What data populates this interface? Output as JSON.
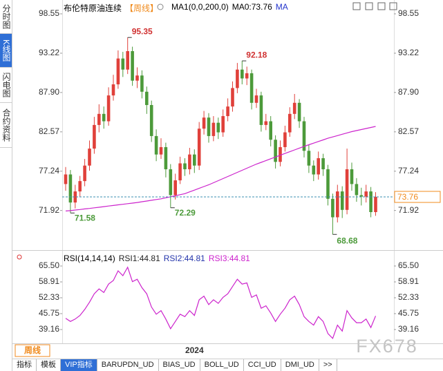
{
  "sidebar": {
    "tabs": [
      "分时图",
      "K线图",
      "闪电图",
      "合约资料"
    ]
  },
  "chart_data": [
    {
      "type": "candlestick",
      "title": "布伦特原油连续",
      "subtitle": "【周线】",
      "indicator_label": "MA1(0,0,200,0)",
      "indicator_value": "MA0:73.76",
      "indicator_name": "MA",
      "categories": [
        null,
        null,
        null,
        null,
        null,
        null,
        null,
        null,
        null,
        null,
        null,
        null,
        null,
        null,
        null,
        null,
        null,
        null,
        null,
        null,
        null,
        null,
        null,
        null,
        null,
        null,
        null,
        "2024",
        null,
        null,
        null,
        null,
        null,
        null,
        null,
        null,
        null,
        null,
        null,
        null,
        null,
        null,
        null,
        null,
        null,
        null,
        null,
        null,
        null,
        null,
        null,
        null,
        null,
        null,
        null,
        null,
        null,
        null,
        null,
        null,
        null,
        null,
        null,
        null,
        null,
        null
      ],
      "open": [
        75.5,
        76.8,
        73.0,
        74.5,
        75.9,
        78.0,
        80.3,
        83.5,
        85.0,
        84.0,
        87.5,
        89.0,
        92.5,
        91.0,
        93.5,
        89.5,
        90.2,
        88.0,
        86.2,
        82.0,
        79.5,
        80.5,
        77.5,
        74.0,
        76.0,
        78.3,
        77.5,
        79.5,
        78.0,
        83.0,
        84.5,
        82.0,
        83.8,
        82.5,
        84.7,
        86.0,
        88.5,
        91.0,
        89.8,
        90.5,
        86.5,
        87.5,
        83.5,
        84.0,
        81.5,
        78.5,
        80.5,
        82.5,
        85.0,
        86.5,
        84.0,
        80.0,
        78.0,
        76.8,
        79.0,
        77.5,
        73.5,
        71.0,
        74.5,
        72.0,
        77.5,
        75.5,
        74.0,
        73.8,
        74.5,
        71.7
      ],
      "high": [
        77.8,
        77.4,
        75.4,
        76.6,
        78.9,
        81.4,
        84.6,
        86.3,
        86.0,
        88.6,
        90.3,
        93.6,
        93.4,
        95.35,
        94.1,
        91.3,
        90.9,
        88.7,
        86.8,
        82.9,
        81.7,
        81.1,
        78.2,
        76.9,
        79.2,
        79.0,
        80.4,
        80.2,
        83.9,
        85.4,
        85.1,
        84.7,
        84.5,
        85.6,
        87.1,
        89.4,
        91.9,
        92.18,
        91.4,
        91.0,
        88.4,
        88.0,
        85.0,
        84.7,
        82.1,
        81.4,
        83.4,
        85.9,
        87.7,
        87.0,
        84.6,
        80.8,
        78.7,
        79.9,
        79.6,
        78.1,
        74.2,
        75.4,
        75.2,
        80.3,
        78.4,
        76.3,
        75.0,
        75.4,
        75.1,
        74.4
      ],
      "low": [
        74.6,
        71.58,
        72.2,
        73.8,
        75.2,
        77.3,
        79.6,
        82.5,
        83.0,
        83.4,
        86.8,
        88.4,
        90.0,
        90.4,
        88.8,
        88.5,
        87.1,
        85.0,
        81.2,
        78.6,
        78.9,
        76.4,
        72.29,
        73.4,
        75.5,
        76.6,
        76.8,
        77.0,
        77.4,
        82.2,
        81.1,
        81.3,
        81.6,
        81.9,
        84.0,
        85.3,
        87.8,
        89.0,
        88.9,
        85.6,
        85.8,
        82.6,
        82.8,
        80.6,
        77.6,
        77.9,
        79.9,
        81.9,
        84.3,
        83.1,
        79.1,
        77.0,
        75.9,
        76.1,
        76.6,
        72.6,
        68.68,
        70.3,
        70.9,
        71.4,
        74.6,
        73.1,
        72.6,
        73.0,
        71.0,
        71.2
      ],
      "close": [
        76.8,
        73.0,
        74.5,
        75.9,
        78.0,
        80.3,
        83.5,
        85.0,
        84.0,
        87.5,
        89.0,
        92.5,
        91.0,
        93.5,
        89.5,
        90.2,
        88.0,
        86.2,
        82.0,
        79.5,
        80.5,
        77.5,
        74.0,
        76.0,
        78.3,
        77.5,
        79.5,
        78.0,
        83.0,
        84.5,
        82.0,
        83.8,
        82.5,
        84.7,
        86.0,
        88.5,
        91.0,
        89.8,
        90.5,
        86.5,
        87.5,
        83.5,
        84.0,
        81.5,
        78.5,
        80.5,
        82.5,
        85.0,
        86.5,
        84.0,
        80.0,
        78.0,
        76.8,
        79.0,
        77.5,
        73.5,
        71.0,
        74.5,
        72.0,
        77.5,
        75.5,
        74.0,
        73.8,
        74.5,
        71.7,
        73.76
      ],
      "up_color": "#e0403a",
      "down_color": "#4c9a3a",
      "ma": {
        "color": "#cc22cc",
        "values": [
          71.85,
          71.9,
          71.98,
          72.05,
          72.13,
          72.2,
          72.28,
          72.36,
          72.44,
          72.52,
          72.6,
          72.68,
          72.76,
          72.84,
          72.92,
          73.0,
          73.1,
          73.2,
          73.3,
          73.4,
          73.5,
          73.64,
          73.78,
          73.92,
          74.06,
          74.2,
          74.44,
          74.68,
          74.92,
          75.16,
          75.4,
          75.68,
          75.96,
          76.24,
          76.52,
          76.8,
          77.08,
          77.36,
          77.64,
          77.92,
          78.2,
          78.44,
          78.68,
          78.92,
          79.16,
          79.4,
          79.64,
          79.88,
          80.12,
          80.36,
          80.6,
          80.82,
          81.04,
          81.26,
          81.48,
          81.7,
          81.88,
          82.06,
          82.24,
          82.42,
          82.6,
          82.74,
          82.88,
          83.02,
          83.16,
          83.3
        ]
      },
      "ylim": [
        67.21,
        99.3
      ],
      "yticks": [
        98.55,
        93.22,
        {
          "value": 87.9,
          "label": "87.90"
        },
        82.57,
        77.24,
        71.92
      ],
      "last_price_color": "#f08a1c"
    },
    {
      "type": "line",
      "title": "RSI(14,14,14)",
      "header": [
        {
          "text": "RSI1:44.81",
          "color": "#222222"
        },
        {
          "text": "RSI2:44.81",
          "color": "#2233aa"
        },
        {
          "text": "RSI3:44.81",
          "color": "#cc22cc"
        }
      ],
      "series": [
        {
          "color": "#cc22cc",
          "values": [
            43.8,
            42.5,
            43.5,
            45.0,
            47.5,
            50.5,
            54.0,
            56.0,
            54.5,
            58.0,
            59.5,
            63.5,
            61.5,
            65.0,
            59.0,
            60.0,
            56.5,
            54.0,
            48.5,
            45.5,
            47.0,
            43.5,
            39.5,
            42.5,
            45.5,
            44.5,
            47.0,
            45.0,
            51.5,
            53.0,
            49.5,
            51.5,
            50.0,
            52.5,
            54.0,
            57.0,
            60.0,
            58.0,
            58.5,
            52.5,
            53.5,
            48.0,
            49.0,
            46.0,
            42.5,
            45.5,
            48.0,
            51.5,
            53.0,
            49.5,
            44.5,
            42.5,
            41.0,
            44.5,
            42.5,
            37.5,
            35.5,
            41.0,
            38.5,
            47.0,
            44.0,
            42.0,
            42.0,
            43.5,
            40.0,
            44.81
          ]
        }
      ],
      "ylim": [
        34.0,
        69.8
      ],
      "yticks": [
        {
          "value": 65.5,
          "label": "65.50"
        },
        58.91,
        52.33,
        45.75,
        39.16
      ]
    }
  ],
  "toolbar": {
    "period": "周线",
    "tabs": [
      "指标",
      "模板",
      "VIP指标",
      "BARUPDN_UD",
      "BIAS_UD",
      "BOLL_UD",
      "CCI_UD",
      "DMI_UD",
      ">>"
    ]
  },
  "watermark": "FX678"
}
